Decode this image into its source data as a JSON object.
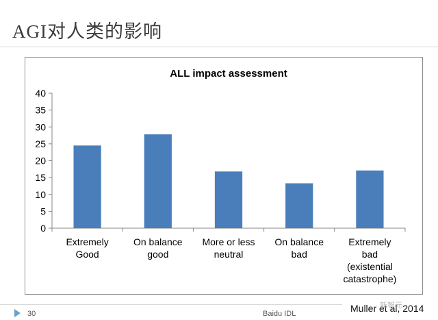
{
  "slide": {
    "title": "AGI对人类的影响",
    "citation": "Muller et al, 2014",
    "page_number": "30",
    "footer": "Baidu IDL",
    "watermark": "新智元"
  },
  "colors": {
    "bar": "#4a7ebb",
    "axis": "#868686",
    "gridline": "#868686"
  },
  "chart_data": {
    "type": "bar",
    "title": "ALL impact assessment",
    "xlabel": "",
    "ylabel": "",
    "categories": [
      [
        "Extremely",
        "Good"
      ],
      [
        "On balance",
        "good"
      ],
      [
        "More or less",
        "neutral"
      ],
      [
        "On balance",
        "bad"
      ],
      [
        "Extremely",
        "bad",
        "(existential",
        "catastrophe)"
      ]
    ],
    "values": [
      24.5,
      27.8,
      16.8,
      13.3,
      17.1
    ],
    "ylim": [
      0,
      40
    ],
    "yticks": [
      0,
      5,
      10,
      15,
      20,
      25,
      30,
      35,
      40
    ],
    "grid": true,
    "legend": "none"
  }
}
